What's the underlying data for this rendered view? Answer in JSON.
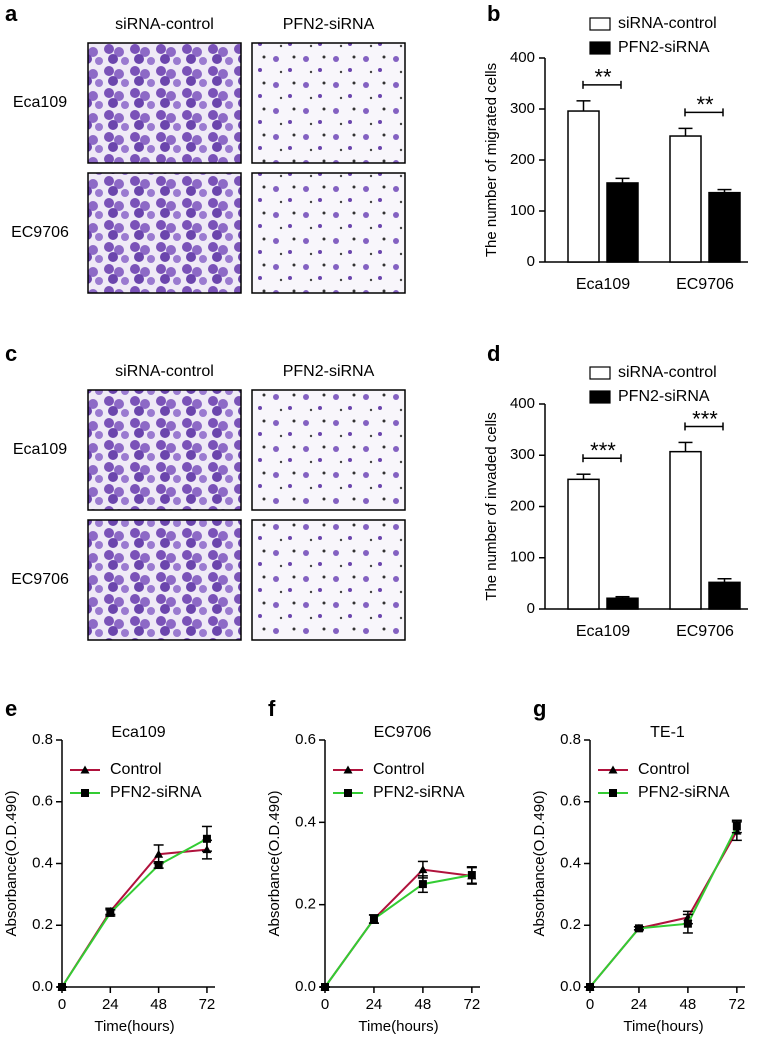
{
  "image_panels": [
    {
      "panel_label": "a",
      "columns": [
        "siRNA-control",
        "PFN2-siRNA"
      ],
      "rows": [
        "Eca109",
        "EC9706"
      ]
    },
    {
      "panel_label": "c",
      "columns": [
        "siRNA-control",
        "PFN2-siRNA"
      ],
      "rows": [
        "Eca109",
        "EC9706"
      ]
    }
  ],
  "chart_data": [
    {
      "type": "bar",
      "panel_label": "b",
      "y_label": "The number of migrated cells",
      "categories": [
        "Eca109",
        "EC9706"
      ],
      "series": [
        {
          "name": "siRNA-control",
          "color": "#ffffff",
          "values": [
            296,
            247
          ],
          "errors": [
            20,
            15
          ]
        },
        {
          "name": "PFN2-siRNA",
          "color": "#000000",
          "values": [
            155,
            136
          ],
          "errors": [
            9,
            6
          ]
        }
      ],
      "annotations": [
        "**",
        "**"
      ],
      "ylim": [
        0,
        400
      ],
      "yticks": [
        0,
        100,
        200,
        300,
        400
      ]
    },
    {
      "type": "bar",
      "panel_label": "d",
      "y_label": "The number of invaded cells",
      "categories": [
        "Eca109",
        "EC9706"
      ],
      "series": [
        {
          "name": "siRNA-control",
          "color": "#ffffff",
          "values": [
            253,
            307
          ],
          "errors": [
            10,
            18
          ]
        },
        {
          "name": "PFN2-siRNA",
          "color": "#000000",
          "values": [
            21,
            52
          ],
          "errors": [
            3,
            7
          ]
        }
      ],
      "annotations": [
        "***",
        "***"
      ],
      "ylim": [
        0,
        400
      ],
      "yticks": [
        0,
        100,
        200,
        300,
        400
      ]
    },
    {
      "type": "line",
      "panel_label": "e",
      "title": "Eca109",
      "x_label": "Time(hours)",
      "y_label": "Absorbance(O.D.490)",
      "x": [
        0,
        24,
        48,
        72
      ],
      "series": [
        {
          "name": "Control",
          "color": "#b0123c",
          "marker": "triangle",
          "values": [
            0,
            0.245,
            0.43,
            0.445
          ],
          "errors": [
            0,
            0.01,
            0.03,
            0.03
          ]
        },
        {
          "name": "PFN2-siRNA",
          "color": "#33cc33",
          "marker": "square",
          "values": [
            0,
            0.24,
            0.395,
            0.48
          ],
          "errors": [
            0,
            0.01,
            0.01,
            0.04
          ]
        }
      ],
      "xlim": [
        0,
        76
      ],
      "xticks": [
        0,
        24,
        48,
        72
      ],
      "ylim": [
        0,
        0.8
      ],
      "yticks": [
        {
          "value": 0,
          "label": "0.0"
        },
        0.2,
        0.4,
        0.6,
        0.8
      ]
    },
    {
      "type": "line",
      "panel_label": "f",
      "title": "EC9706",
      "x_label": "Time(hours)",
      "y_label": "Absorbance(O.D.490)",
      "x": [
        0,
        24,
        48,
        72
      ],
      "series": [
        {
          "name": "Control",
          "color": "#b0123c",
          "marker": "triangle",
          "values": [
            0,
            0.165,
            0.285,
            0.27
          ],
          "errors": [
            0,
            0.01,
            0.02,
            0.02
          ]
        },
        {
          "name": "PFN2-siRNA",
          "color": "#33cc33",
          "marker": "square",
          "values": [
            0,
            0.165,
            0.25,
            0.272
          ],
          "errors": [
            0,
            0.01,
            0.02,
            0.02
          ]
        }
      ],
      "xlim": [
        0,
        76
      ],
      "xticks": [
        0,
        24,
        48,
        72
      ],
      "ylim": [
        0,
        0.6
      ],
      "yticks": [
        {
          "value": 0,
          "label": "0.0"
        },
        0.2,
        0.4,
        0.6
      ]
    },
    {
      "type": "line",
      "panel_label": "g",
      "title": "TE-1",
      "x_label": "Time(hours)",
      "y_label": "Absorbance(O.D.490)",
      "x": [
        0,
        24,
        48,
        72
      ],
      "series": [
        {
          "name": "Control",
          "color": "#b0123c",
          "marker": "triangle",
          "values": [
            0,
            0.19,
            0.225,
            0.505
          ],
          "errors": [
            0,
            0.005,
            0.02,
            0.03
          ]
        },
        {
          "name": "PFN2-siRNA",
          "color": "#33cc33",
          "marker": "square",
          "values": [
            0,
            0.19,
            0.205,
            0.52
          ],
          "errors": [
            0,
            0.005,
            0.03,
            0.02
          ]
        }
      ],
      "xlim": [
        0,
        76
      ],
      "xticks": [
        0,
        24,
        48,
        72
      ],
      "ylim": [
        0,
        0.8
      ],
      "yticks": [
        {
          "value": 0,
          "label": "0.0"
        },
        0.2,
        0.4,
        0.6,
        0.8
      ]
    }
  ]
}
